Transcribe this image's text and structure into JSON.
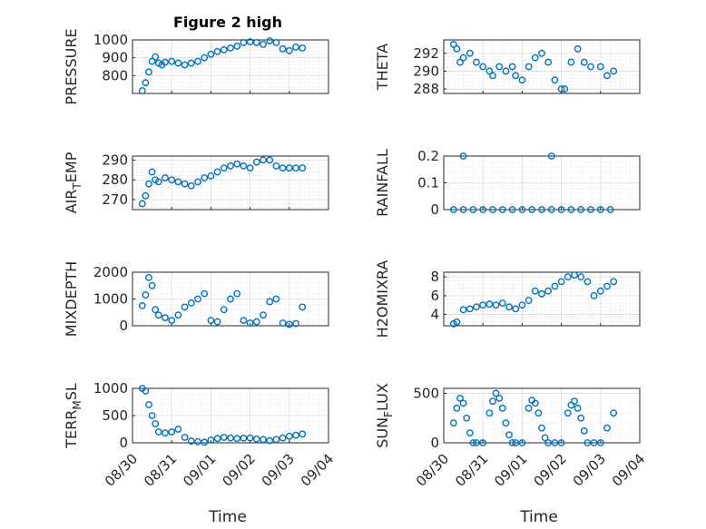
{
  "figure_title": "Figure 2 high",
  "xlabel": "Time",
  "x_ticks": [
    "08/30",
    "08/31",
    "09/01",
    "09/02",
    "09/03",
    "09/04"
  ],
  "marker_color": "#0072BD",
  "chart_data": [
    {
      "type": "scatter",
      "ylabel": "PRESSURE",
      "ylim": [
        700,
        1000
      ],
      "yticks": [
        800,
        900,
        1000
      ],
      "grid": true,
      "x": [
        "08/30 06:00",
        "08/30 08:00",
        "08/30 10:00",
        "08/30 12:00",
        "08/30 14:00",
        "08/30 16:00",
        "08/30 18:00",
        "08/30 20:00",
        "08/31 00:00",
        "08/31 04:00",
        "08/31 08:00",
        "08/31 12:00",
        "08/31 16:00",
        "08/31 20:00",
        "09/01 00:00",
        "09/01 04:00",
        "09/01 08:00",
        "09/01 12:00",
        "09/01 16:00",
        "09/01 20:00",
        "09/02 00:00",
        "09/02 04:00",
        "09/02 08:00",
        "09/02 12:00",
        "09/02 16:00",
        "09/02 20:00",
        "09/03 00:00",
        "09/03 04:00",
        "09/03 08:00"
      ],
      "values": [
        715,
        760,
        820,
        880,
        905,
        870,
        860,
        875,
        880,
        870,
        860,
        870,
        880,
        900,
        920,
        935,
        945,
        955,
        965,
        985,
        990,
        985,
        975,
        995,
        985,
        950,
        940,
        960,
        955
      ]
    },
    {
      "type": "scatter",
      "ylabel": "THETA",
      "ylim": [
        287.5,
        293.5
      ],
      "yticks": [
        288,
        290,
        292
      ],
      "grid": true,
      "x": [
        "08/30 06:00",
        "08/30 08:00",
        "08/30 10:00",
        "08/30 12:00",
        "08/30 16:00",
        "08/30 20:00",
        "08/31 00:00",
        "08/31 04:00",
        "08/31 06:00",
        "08/31 10:00",
        "08/31 14:00",
        "08/31 18:00",
        "08/31 20:00",
        "09/01 00:00",
        "09/01 04:00",
        "09/01 08:00",
        "09/01 12:00",
        "09/01 16:00",
        "09/01 20:00",
        "09/02 00:00",
        "09/02 02:00",
        "09/02 06:00",
        "09/02 10:00",
        "09/02 14:00",
        "09/02 18:00",
        "09/03 00:00",
        "09/03 04:00",
        "09/03 08:00"
      ],
      "values": [
        293,
        292.5,
        291,
        291.5,
        292,
        291,
        290.5,
        290,
        289.5,
        290.5,
        290,
        290.5,
        289.5,
        289,
        290.5,
        291.5,
        292,
        291,
        289,
        288,
        288,
        291,
        292.5,
        291,
        290.5,
        290.5,
        289.5,
        290
      ]
    },
    {
      "type": "scatter",
      "ylabel": "AIR_TEMP",
      "ylim": [
        265,
        292
      ],
      "yticks": [
        270,
        280,
        290
      ],
      "grid": true,
      "x": [
        "08/30 06:00",
        "08/30 08:00",
        "08/30 10:00",
        "08/30 12:00",
        "08/30 14:00",
        "08/30 16:00",
        "08/30 20:00",
        "08/31 00:00",
        "08/31 04:00",
        "08/31 08:00",
        "08/31 12:00",
        "08/31 16:00",
        "08/31 20:00",
        "09/01 00:00",
        "09/01 04:00",
        "09/01 08:00",
        "09/01 12:00",
        "09/01 16:00",
        "09/01 20:00",
        "09/02 00:00",
        "09/02 04:00",
        "09/02 08:00",
        "09/02 12:00",
        "09/02 16:00",
        "09/02 20:00",
        "09/03 00:00",
        "09/03 04:00",
        "09/03 08:00"
      ],
      "values": [
        268,
        272,
        278,
        284,
        280,
        279,
        281,
        280,
        279,
        278,
        277,
        279,
        281,
        282,
        284,
        286,
        287,
        288,
        287,
        286,
        289,
        290,
        290,
        287,
        286,
        286,
        286,
        286
      ]
    },
    {
      "type": "scatter",
      "ylabel": "RAINFALL",
      "ylim": [
        0,
        0.2
      ],
      "yticks": [
        0,
        0.1,
        0.2
      ],
      "grid": true,
      "x": [
        "08/30 06:00",
        "08/30 12:00",
        "08/30 18:00",
        "08/31 00:00",
        "08/31 06:00",
        "08/31 12:00",
        "08/31 18:00",
        "09/01 00:00",
        "09/01 06:00",
        "09/01 12:00",
        "09/01 18:00",
        "09/02 00:00",
        "09/02 06:00",
        "09/02 12:00",
        "09/02 18:00",
        "09/03 00:00",
        "09/03 06:00",
        "08/30 12:00",
        "09/01 18:00"
      ],
      "values": [
        0,
        0,
        0,
        0,
        0,
        0,
        0,
        0,
        0,
        0,
        0,
        0,
        0,
        0,
        0,
        0,
        0,
        0.2,
        0.2
      ]
    },
    {
      "type": "scatter",
      "ylabel": "MIXDEPTH",
      "ylim": [
        0,
        2000
      ],
      "yticks": [
        0,
        1000,
        2000
      ],
      "grid": true,
      "x": [
        "08/30 06:00",
        "08/30 08:00",
        "08/30 10:00",
        "08/30 12:00",
        "08/30 14:00",
        "08/30 16:00",
        "08/30 20:00",
        "08/31 00:00",
        "08/31 04:00",
        "08/31 08:00",
        "08/31 12:00",
        "08/31 16:00",
        "08/31 20:00",
        "09/01 00:00",
        "09/01 04:00",
        "09/01 08:00",
        "09/01 12:00",
        "09/01 16:00",
        "09/01 20:00",
        "09/02 00:00",
        "09/02 04:00",
        "09/02 08:00",
        "09/02 12:00",
        "09/02 16:00",
        "09/02 20:00",
        "09/03 00:00",
        "09/03 04:00",
        "09/03 08:00"
      ],
      "values": [
        750,
        1150,
        1800,
        1500,
        600,
        400,
        300,
        200,
        400,
        700,
        850,
        1000,
        1200,
        200,
        150,
        600,
        1000,
        1200,
        200,
        100,
        150,
        400,
        900,
        1000,
        100,
        50,
        80,
        700
      ]
    },
    {
      "type": "scatter",
      "ylabel": "H2OMIXRA",
      "ylim": [
        2.8,
        8.5
      ],
      "yticks": [
        4,
        6,
        8
      ],
      "grid": true,
      "x": [
        "08/30 06:00",
        "08/30 08:00",
        "08/30 12:00",
        "08/30 16:00",
        "08/30 20:00",
        "08/31 00:00",
        "08/31 04:00",
        "08/31 08:00",
        "08/31 12:00",
        "08/31 16:00",
        "08/31 20:00",
        "09/01 00:00",
        "09/01 04:00",
        "09/01 08:00",
        "09/01 12:00",
        "09/01 16:00",
        "09/01 20:00",
        "09/02 00:00",
        "09/02 04:00",
        "09/02 08:00",
        "09/02 12:00",
        "09/02 16:00",
        "09/02 20:00",
        "09/03 00:00",
        "09/03 04:00",
        "09/03 08:00"
      ],
      "values": [
        3,
        3.2,
        4.5,
        4.6,
        4.8,
        5.0,
        5.1,
        5.0,
        5.2,
        4.8,
        4.6,
        5.0,
        5.5,
        6.5,
        6.2,
        6.5,
        7.0,
        7.5,
        8.0,
        8.2,
        8.0,
        7.5,
        6.0,
        6.5,
        7.0,
        7.5
      ]
    },
    {
      "type": "scatter",
      "ylabel": "TERR_MSL",
      "ylim": [
        0,
        1000
      ],
      "yticks": [
        0,
        500,
        1000
      ],
      "grid": true,
      "x": [
        "08/30 06:00",
        "08/30 08:00",
        "08/30 10:00",
        "08/30 12:00",
        "08/30 14:00",
        "08/30 16:00",
        "08/30 20:00",
        "08/31 00:00",
        "08/31 04:00",
        "08/31 08:00",
        "08/31 12:00",
        "08/31 16:00",
        "08/31 20:00",
        "09/01 00:00",
        "09/01 04:00",
        "09/01 08:00",
        "09/01 12:00",
        "09/01 16:00",
        "09/01 20:00",
        "09/02 00:00",
        "09/02 04:00",
        "09/02 08:00",
        "09/02 12:00",
        "09/02 16:00",
        "09/02 20:00",
        "09/03 00:00",
        "09/03 04:00",
        "09/03 08:00"
      ],
      "values": [
        1000,
        950,
        700,
        500,
        350,
        200,
        180,
        200,
        250,
        100,
        30,
        20,
        10,
        50,
        80,
        100,
        90,
        80,
        85,
        90,
        70,
        60,
        40,
        60,
        90,
        120,
        140,
        160
      ]
    },
    {
      "type": "scatter",
      "ylabel": "SUN_FLUX",
      "ylim": [
        0,
        550
      ],
      "yticks": [
        0,
        500
      ],
      "grid": true,
      "x": [
        "08/30 06:00",
        "08/30 08:00",
        "08/30 10:00",
        "08/30 12:00",
        "08/30 14:00",
        "08/30 16:00",
        "08/30 18:00",
        "08/30 20:00",
        "08/31 00:00",
        "08/31 04:00",
        "08/31 06:00",
        "08/31 08:00",
        "08/31 10:00",
        "08/31 12:00",
        "08/31 14:00",
        "08/31 16:00",
        "08/31 18:00",
        "08/31 20:00",
        "09/01 00:00",
        "09/01 04:00",
        "09/01 06:00",
        "09/01 08:00",
        "09/01 10:00",
        "09/01 12:00",
        "09/01 14:00",
        "09/01 16:00",
        "09/01 20:00",
        "09/02 00:00",
        "09/02 04:00",
        "09/02 06:00",
        "09/02 08:00",
        "09/02 10:00",
        "09/02 12:00",
        "09/02 14:00",
        "09/02 16:00",
        "09/02 20:00",
        "09/03 00:00",
        "09/03 04:00",
        "09/03 08:00"
      ],
      "values": [
        200,
        350,
        450,
        400,
        250,
        100,
        0,
        0,
        0,
        300,
        420,
        500,
        450,
        350,
        200,
        80,
        0,
        0,
        0,
        350,
        430,
        400,
        300,
        150,
        50,
        0,
        0,
        0,
        300,
        380,
        420,
        350,
        250,
        120,
        0,
        0,
        0,
        150,
        300
      ]
    }
  ]
}
